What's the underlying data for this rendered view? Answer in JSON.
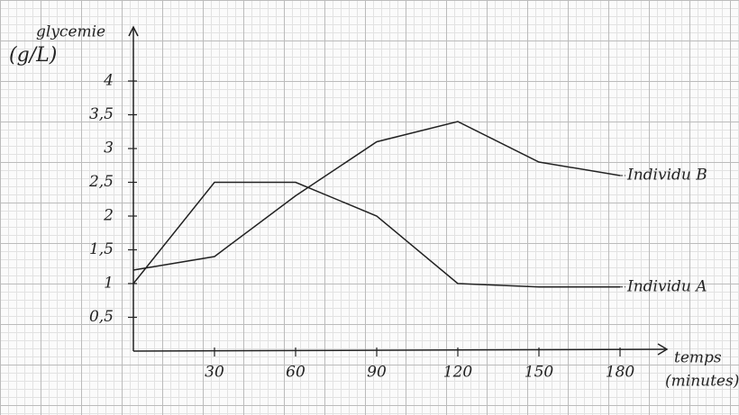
{
  "chart_data": {
    "type": "line",
    "y_label": "glycemie",
    "y_unit": "(g/L)",
    "x_label": "temps",
    "x_unit": "(minutes)",
    "x": [
      0,
      30,
      60,
      90,
      120,
      150,
      180
    ],
    "series": [
      {
        "name": "Individu A",
        "color": "#222222",
        "values": [
          1,
          2.5,
          2.5,
          2,
          1,
          0.95,
          0.95
        ]
      },
      {
        "name": "Individu B",
        "color": "#222222",
        "values": [
          1.2,
          1.4,
          2.3,
          3.1,
          3.4,
          2.8,
          2.6
        ]
      }
    ],
    "xlim": [
      0,
      200
    ],
    "xticks": [
      30,
      60,
      90,
      120,
      150,
      180
    ],
    "ylim": [
      0,
      4.8
    ],
    "yticks": [
      {
        "value": 0.5,
        "label": "0,5"
      },
      1,
      {
        "value": 1.5,
        "label": "1,5"
      },
      2,
      {
        "value": 2.5,
        "label": "2,5"
      },
      3,
      {
        "value": 3.5,
        "label": "3,5"
      },
      4
    ]
  }
}
